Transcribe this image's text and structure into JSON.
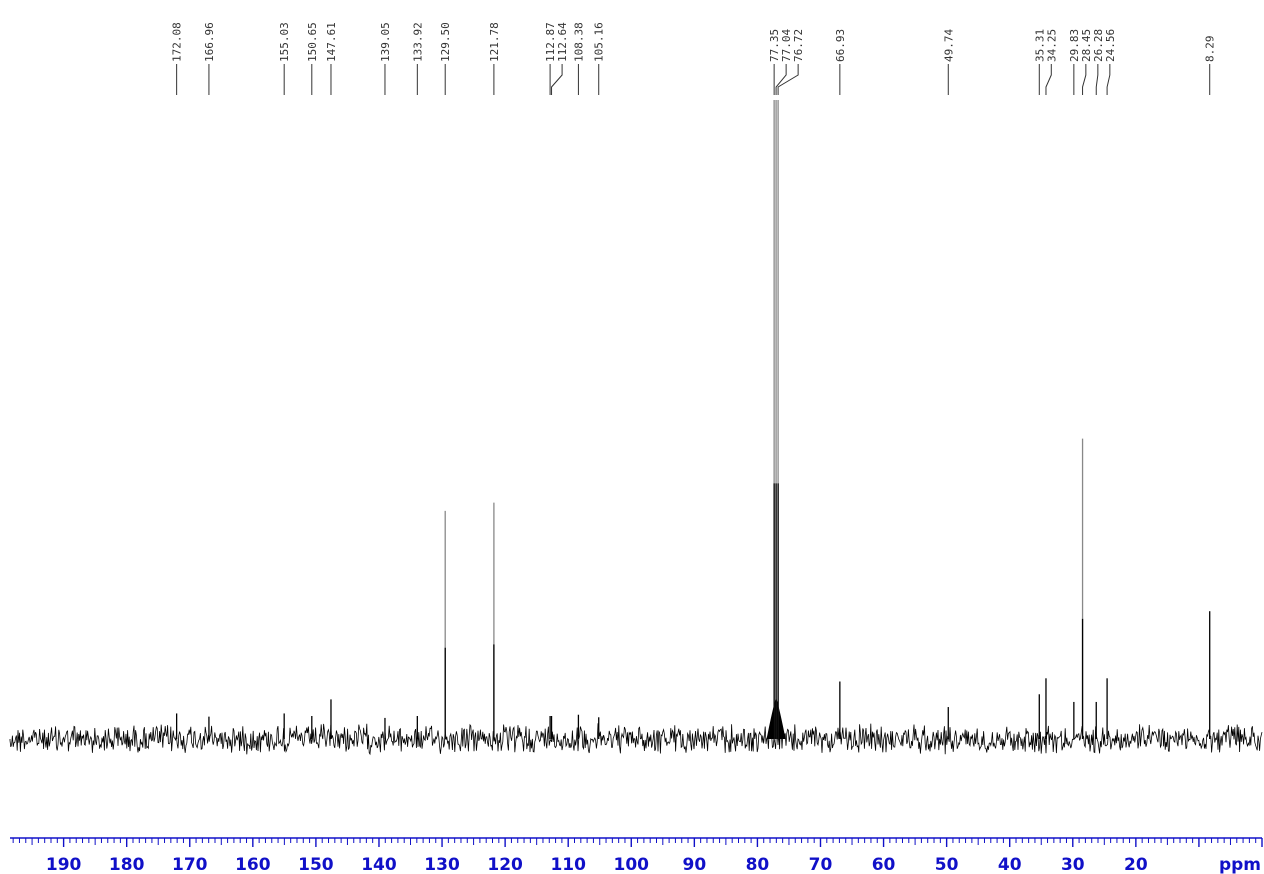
{
  "chart_data": {
    "type": "line",
    "x_unit_label": "ppm",
    "xlim": [
      198.5,
      0
    ],
    "x_reversed": true,
    "x_major_ticks": [
      190,
      180,
      170,
      160,
      150,
      140,
      130,
      120,
      110,
      100,
      90,
      80,
      70,
      60,
      50,
      40,
      30,
      20
    ],
    "x_minor_tick_step": 1,
    "grid": false,
    "colors": {
      "axis": "#1010c8",
      "spectrum": "#000000",
      "tall_peak_upper": "#888888",
      "label_lines": "#333333"
    },
    "peak_labels": [
      {
        "text": "172.08",
        "ppm": 172.08,
        "height": 0.04
      },
      {
        "text": "166.96",
        "ppm": 166.96,
        "height": 0.035
      },
      {
        "text": "155.03",
        "ppm": 155.03,
        "height": 0.04
      },
      {
        "text": "150.65",
        "ppm": 150.65,
        "height": 0.036
      },
      {
        "text": "147.61",
        "ppm": 147.61,
        "height": 0.062
      },
      {
        "text": "139.05",
        "ppm": 139.05,
        "height": 0.033
      },
      {
        "text": "133.92",
        "ppm": 133.92,
        "height": 0.036
      },
      {
        "text": "129.50",
        "ppm": 129.5,
        "height": 0.357
      },
      {
        "text": "121.78",
        "ppm": 121.78,
        "height": 0.37
      },
      {
        "text": "112.87",
        "ppm": 112.87,
        "height": 0.036
      },
      {
        "text": "112.64",
        "ppm": 112.64,
        "height": 0.036
      },
      {
        "text": "108.38",
        "ppm": 108.38,
        "height": 0.038
      },
      {
        "text": "105.16",
        "ppm": 105.16,
        "height": 0.034
      },
      {
        "text": "77.35",
        "ppm": 77.35,
        "height": 1.0
      },
      {
        "text": "77.04",
        "ppm": 77.04,
        "height": 1.0
      },
      {
        "text": "76.72",
        "ppm": 76.72,
        "height": 1.0
      },
      {
        "text": "66.93",
        "ppm": 66.93,
        "height": 0.09
      },
      {
        "text": "49.74",
        "ppm": 49.74,
        "height": 0.05
      },
      {
        "text": "35.31",
        "ppm": 35.31,
        "height": 0.07
      },
      {
        "text": "34.25",
        "ppm": 34.25,
        "height": 0.095
      },
      {
        "text": "29.83",
        "ppm": 29.83,
        "height": 0.058
      },
      {
        "text": "28.45",
        "ppm": 28.45,
        "height": 0.47
      },
      {
        "text": "26.28",
        "ppm": 26.28,
        "height": 0.058
      },
      {
        "text": "24.56",
        "ppm": 24.56,
        "height": 0.095
      },
      {
        "text": "8.29",
        "ppm": 8.29,
        "height": 0.2
      }
    ]
  }
}
